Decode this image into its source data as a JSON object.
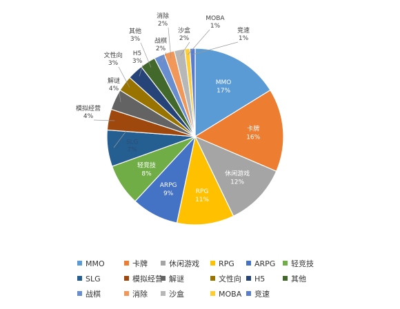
{
  "chart_data": {
    "type": "pie",
    "title": "",
    "legend_placement": "bottom",
    "start_angle_deg": 0,
    "direction": "clockwise",
    "slices": [
      {
        "name": "MMO",
        "value": 17,
        "label": "17%",
        "color": "#5b9bd5"
      },
      {
        "name": "卡牌",
        "value": 16,
        "label": "16%",
        "color": "#ed7d31"
      },
      {
        "name": "休闲游戏",
        "value": 12,
        "label": "12%",
        "color": "#a5a5a5"
      },
      {
        "name": "RPG",
        "value": 11,
        "label": "11%",
        "color": "#ffc000"
      },
      {
        "name": "ARPG",
        "value": 9,
        "label": "9%",
        "color": "#4472c4"
      },
      {
        "name": "轻竞技",
        "value": 8,
        "label": "8%",
        "color": "#70ad47"
      },
      {
        "name": "SLG",
        "value": 7,
        "label": "7%",
        "color": "#255e91"
      },
      {
        "name": "模拟经营",
        "value": 4,
        "label": "4%",
        "color": "#9e480e"
      },
      {
        "name": "解谜",
        "value": 4,
        "label": "4%",
        "color": "#636363"
      },
      {
        "name": "文性向",
        "value": 3,
        "label": "3%",
        "color": "#997300"
      },
      {
        "name": "H5",
        "value": 3,
        "label": "3%",
        "color": "#264478"
      },
      {
        "name": "其他",
        "value": 3,
        "label": "3%",
        "color": "#43682b"
      },
      {
        "name": "战棋",
        "value": 2,
        "label": "2%",
        "color": "#698ed0"
      },
      {
        "name": "消除",
        "value": 2,
        "label": "2%",
        "color": "#f1975a"
      },
      {
        "name": "沙盒",
        "value": 2,
        "label": "2%",
        "color": "#b7b7b7"
      },
      {
        "name": "MOBA",
        "value": 1,
        "label": "1%",
        "color": "#ffcd33"
      },
      {
        "name": "竞速",
        "value": 1,
        "label": "1%",
        "color": "#5a7ccd"
      }
    ],
    "legend_order": [
      "MMO",
      "卡牌",
      "休闲游戏",
      "RPG",
      "ARPG",
      "轻竞技",
      "SLG",
      "模拟经营",
      "解谜",
      "文性向",
      "H5",
      "其他",
      "战棋",
      "消除",
      "沙盒",
      "MOBA",
      "竞速"
    ]
  }
}
